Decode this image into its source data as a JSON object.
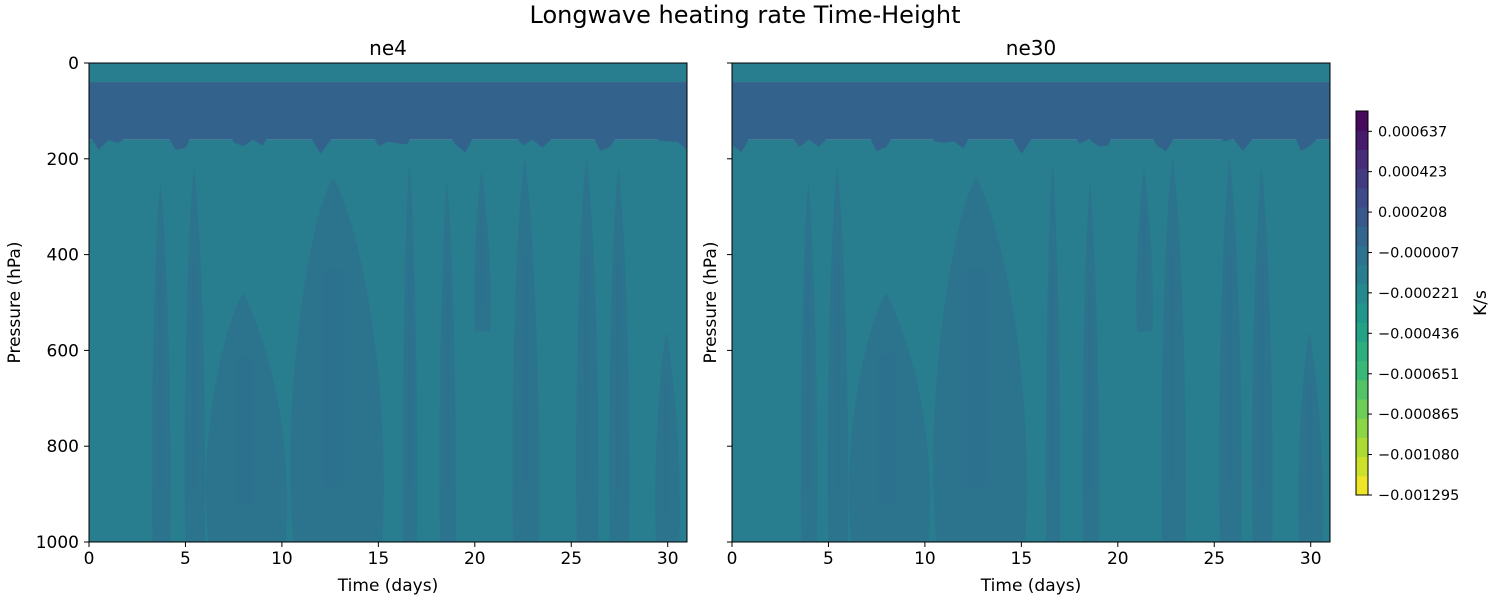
{
  "figure": {
    "title": "Longwave heating rate Time-Height"
  },
  "colormap": {
    "name": "viridis_r",
    "stops": [
      "#fde725",
      "#b5de2b",
      "#6ece58",
      "#35b779",
      "#1f9e89",
      "#26828e",
      "#31688e",
      "#3e4989",
      "#482878",
      "#440154"
    ]
  },
  "chart_data": [
    {
      "type": "heatmap",
      "title": "ne4",
      "xlabel": "Time (days)",
      "ylabel": "Pressure (hPa)",
      "xlim": [
        0,
        31
      ],
      "ylim": [
        1000,
        0
      ],
      "xticks": [
        0,
        5,
        10,
        15,
        20,
        25,
        30
      ],
      "yticks": [
        0,
        200,
        400,
        600,
        800,
        1000
      ],
      "field_levels": [
        {
          "p_min": 0,
          "p_max": 40,
          "value": -0.000114,
          "note_color": "#27808e"
        },
        {
          "p_min": 40,
          "p_max": 160,
          "value": 0.000101,
          "note_color": "#2e6b8e"
        },
        {
          "p_min": 160,
          "p_max": 1000,
          "value": -0.000114,
          "note_color": "#27808e"
        }
      ],
      "plumes": [
        {
          "t0": 3.3,
          "t1": 4.2,
          "p0": 250,
          "p1": 1000
        },
        {
          "t0": 5.0,
          "t1": 6.0,
          "p0": 220,
          "p1": 1000
        },
        {
          "t0": 6.2,
          "t1": 10.2,
          "p0": 480,
          "p1": 1000
        },
        {
          "t0": 10.6,
          "t1": 15.2,
          "p0": 240,
          "p1": 1000
        },
        {
          "t0": 16.3,
          "t1": 17.0,
          "p0": 210,
          "p1": 1000
        },
        {
          "t0": 18.2,
          "t1": 19.0,
          "p0": 250,
          "p1": 1000
        },
        {
          "t0": 20.0,
          "t1": 20.8,
          "p0": 220,
          "p1": 560
        },
        {
          "t0": 22.0,
          "t1": 23.3,
          "p0": 200,
          "p1": 1000
        },
        {
          "t0": 25.3,
          "t1": 26.4,
          "p0": 200,
          "p1": 1000
        },
        {
          "t0": 27.0,
          "t1": 28.0,
          "p0": 220,
          "p1": 1000
        },
        {
          "t0": 29.4,
          "t1": 30.6,
          "p0": 560,
          "p1": 1000
        }
      ]
    },
    {
      "type": "heatmap",
      "title": "ne30",
      "xlabel": "Time (days)",
      "ylabel": "Pressure (hPa)",
      "xlim": [
        0,
        31
      ],
      "ylim": [
        1000,
        0
      ],
      "xticks": [
        0,
        5,
        10,
        15,
        20,
        25,
        30
      ],
      "yticks": [
        0,
        200,
        400,
        600,
        800,
        1000
      ],
      "field_levels": [
        {
          "p_min": 0,
          "p_max": 40,
          "value": -0.000114,
          "note_color": "#27808e"
        },
        {
          "p_min": 40,
          "p_max": 160,
          "value": 0.000101,
          "note_color": "#2e6b8e"
        },
        {
          "p_min": 160,
          "p_max": 1000,
          "value": -0.000114,
          "note_color": "#27808e"
        }
      ],
      "plumes": [
        {
          "t0": 3.6,
          "t1": 4.4,
          "p0": 250,
          "p1": 1000
        },
        {
          "t0": 5.0,
          "t1": 6.0,
          "p0": 220,
          "p1": 1000
        },
        {
          "t0": 6.2,
          "t1": 10.2,
          "p0": 480,
          "p1": 1000
        },
        {
          "t0": 10.6,
          "t1": 15.2,
          "p0": 240,
          "p1": 1000
        },
        {
          "t0": 16.3,
          "t1": 17.0,
          "p0": 210,
          "p1": 1000
        },
        {
          "t0": 18.2,
          "t1": 19.0,
          "p0": 250,
          "p1": 1000
        },
        {
          "t0": 21.0,
          "t1": 21.8,
          "p0": 220,
          "p1": 560
        },
        {
          "t0": 22.3,
          "t1": 23.5,
          "p0": 200,
          "p1": 1000
        },
        {
          "t0": 25.3,
          "t1": 26.4,
          "p0": 200,
          "p1": 1000
        },
        {
          "t0": 27.0,
          "t1": 28.0,
          "p0": 220,
          "p1": 1000
        },
        {
          "t0": 29.4,
          "t1": 30.6,
          "p0": 560,
          "p1": 1000
        }
      ]
    }
  ],
  "colorbar": {
    "label": "K/s",
    "vmin": -0.001295,
    "vmax": 0.000745,
    "ticks": [
      {
        "value": 0.000637,
        "label": "0.000637"
      },
      {
        "value": 0.000423,
        "label": "0.000423"
      },
      {
        "value": 0.000208,
        "label": "0.000208"
      },
      {
        "value": -7e-06,
        "label": "−0.000007"
      },
      {
        "value": -0.000221,
        "label": "−0.000221"
      },
      {
        "value": -0.000436,
        "label": "−0.000436"
      },
      {
        "value": -0.000651,
        "label": "−0.000651"
      },
      {
        "value": -0.000865,
        "label": "−0.000865"
      },
      {
        "value": -0.00108,
        "label": "−0.001080"
      },
      {
        "value": -0.001295,
        "label": "−0.001295"
      }
    ]
  }
}
